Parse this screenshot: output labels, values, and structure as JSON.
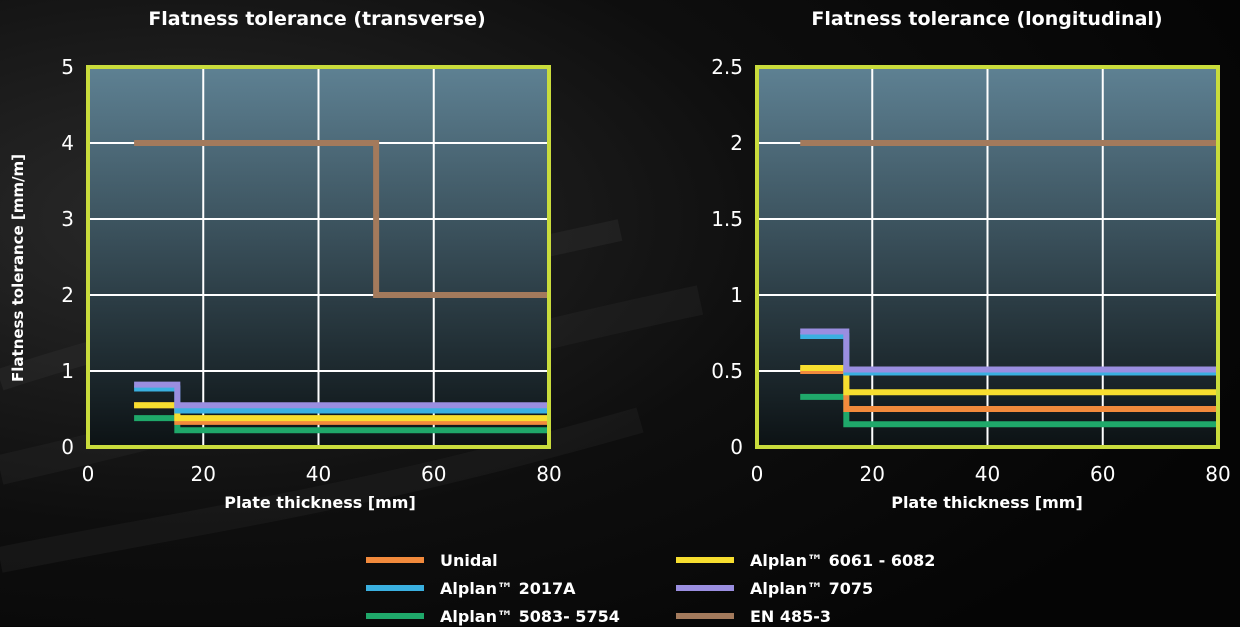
{
  "chart_data": [
    {
      "type": "line",
      "title": "Flatness tolerance (transverse)",
      "xlabel": "Plate thickness [mm]",
      "ylabel": "Flatness tolerance [mm/m]",
      "xlim": [
        0,
        80
      ],
      "ylim": [
        0,
        5
      ],
      "xticks": [
        "0",
        "20",
        "40",
        "60",
        "80"
      ],
      "yticks": [
        "0",
        "1",
        "2",
        "3",
        "4",
        "5"
      ],
      "grid": true,
      "series": [
        {
          "name": "EN 485-3",
          "x": [
            8,
            50,
            50,
            80
          ],
          "y": [
            4.0,
            4.0,
            2.0,
            2.0
          ]
        },
        {
          "name": "Alplan™ 7075",
          "x": [
            8,
            15.5,
            15.5,
            80
          ],
          "y": [
            0.82,
            0.82,
            0.55,
            0.55
          ]
        },
        {
          "name": "Alplan™ 2017A",
          "x": [
            8,
            15.5,
            15.5,
            80
          ],
          "y": [
            0.77,
            0.77,
            0.48,
            0.48
          ]
        },
        {
          "name": "Alplan™ 6061 - 6082",
          "x": [
            8,
            15.5,
            15.5,
            80
          ],
          "y": [
            0.55,
            0.55,
            0.38,
            0.38
          ]
        },
        {
          "name": "Unidal",
          "x": [
            8,
            15.5,
            15.5,
            80
          ],
          "y": [
            0.55,
            0.55,
            0.33,
            0.33
          ]
        },
        {
          "name": "Alplan™ 5083- 5754",
          "x": [
            8,
            15.5,
            15.5,
            80
          ],
          "y": [
            0.38,
            0.38,
            0.22,
            0.22
          ]
        }
      ]
    },
    {
      "type": "line",
      "title": "Flatness tolerance (longitudinal)",
      "xlabel": "Plate thickness [mm]",
      "ylabel": "",
      "xlim": [
        0,
        80
      ],
      "ylim": [
        0,
        2.5
      ],
      "xticks": [
        "0",
        "20",
        "40",
        "60",
        "80"
      ],
      "yticks": [
        "0",
        "0.5",
        "1",
        "1.5",
        "2",
        "2.5"
      ],
      "grid": true,
      "series": [
        {
          "name": "EN 485-3",
          "x": [
            7.5,
            80
          ],
          "y": [
            2.0,
            2.0
          ]
        },
        {
          "name": "Alplan™ 7075",
          "x": [
            7.5,
            15.5,
            15.5,
            80
          ],
          "y": [
            0.76,
            0.76,
            0.51,
            0.51
          ]
        },
        {
          "name": "Alplan™ 2017A",
          "x": [
            7.5,
            15.5,
            15.5,
            80
          ],
          "y": [
            0.73,
            0.73,
            0.49,
            0.49
          ]
        },
        {
          "name": "Alplan™ 6061 - 6082",
          "x": [
            7.5,
            15.5,
            15.5,
            80
          ],
          "y": [
            0.52,
            0.52,
            0.36,
            0.36
          ]
        },
        {
          "name": "Unidal",
          "x": [
            7.5,
            15.5,
            15.5,
            80
          ],
          "y": [
            0.5,
            0.5,
            0.25,
            0.25
          ]
        },
        {
          "name": "Alplan™ 5083- 5754",
          "x": [
            7.5,
            15.5,
            15.5,
            80
          ],
          "y": [
            0.33,
            0.33,
            0.15,
            0.15
          ]
        }
      ]
    }
  ],
  "legend": [
    {
      "name": "Unidal",
      "color": "#f28a3c"
    },
    {
      "name": "Alplan™ 2017A",
      "color": "#3ab0e0"
    },
    {
      "name": "Alplan™ 5083- 5754",
      "color": "#1fa86a"
    },
    {
      "name": "Alplan™ 6061 - 6082",
      "color": "#f7de2f"
    },
    {
      "name": "Alplan™ 7075",
      "color": "#9a8ee0"
    },
    {
      "name": "EN 485-3",
      "color": "#a37a5c"
    }
  ],
  "colors": {
    "frame": "#c9dc3c",
    "grid": "#ffffff",
    "plot_top": "#5e8193",
    "plot_bottom": "#0c1214"
  }
}
